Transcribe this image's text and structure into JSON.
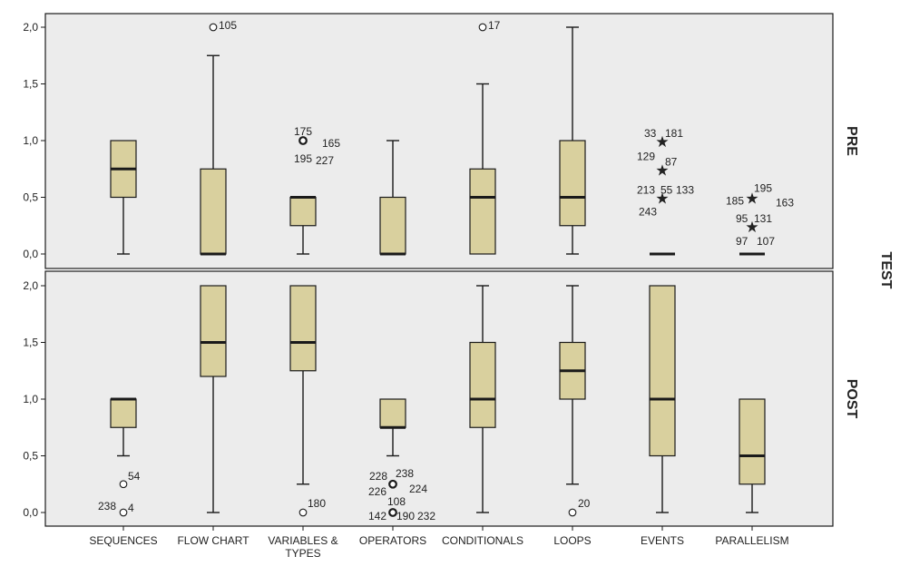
{
  "chart_data": {
    "type": "boxplot",
    "facet_label": "TEST",
    "categories": [
      "SEQUENCES",
      "FLOW CHART",
      "VARIABLES & TYPES",
      "OPERATORS",
      "CONDITIONALS",
      "LOOPS",
      "EVENTS",
      "PARALLELISM"
    ],
    "y_ticks": [
      "0,0",
      "0,5",
      "1,0",
      "1,5",
      "2,0"
    ],
    "ylim": [
      0,
      2
    ],
    "colors": {
      "box_fill": "#d9d09e",
      "panel_bg": "#ececec",
      "stroke": "#1a1a1a"
    },
    "panels": [
      {
        "name": "PRE",
        "boxes": [
          {
            "category": "SEQUENCES",
            "min": 0,
            "q1": 0.5,
            "median": 0.75,
            "q3": 1.0,
            "max": 1.0
          },
          {
            "category": "FLOW CHART",
            "min": 0,
            "q1": 0,
            "median": 0,
            "q3": 0.75,
            "max": 1.75
          },
          {
            "category": "VARIABLES & TYPES",
            "min": 0,
            "q1": 0.25,
            "median": 0.5,
            "q3": 0.5,
            "max": 0.5
          },
          {
            "category": "OPERATORS",
            "min": 0,
            "q1": 0,
            "median": 0,
            "q3": 0.5,
            "max": 1.0
          },
          {
            "category": "CONDITIONALS",
            "min": 0,
            "q1": 0,
            "median": 0.5,
            "q3": 0.75,
            "max": 1.5
          },
          {
            "category": "LOOPS",
            "min": 0,
            "q1": 0.25,
            "median": 0.5,
            "q3": 1.0,
            "max": 2.0
          },
          {
            "category": "EVENTS",
            "min": 0,
            "q1": 0,
            "median": 0,
            "q3": 0,
            "max": 0
          },
          {
            "category": "PARALLELISM",
            "min": 0,
            "q1": 0,
            "median": 0,
            "q3": 0,
            "max": 0
          }
        ],
        "outliers": [
          {
            "category": "FLOW CHART",
            "value": 2.0,
            "marker": "circle",
            "labels": [
              "105"
            ]
          },
          {
            "category": "VARIABLES & TYPES",
            "value": 1.0,
            "marker": "circle-bold",
            "labels": [
              "175",
              "165",
              "195",
              "227"
            ]
          },
          {
            "category": "CONDITIONALS",
            "value": 2.0,
            "marker": "circle",
            "labels": [
              "17"
            ]
          },
          {
            "category": "EVENTS",
            "value": 1.0,
            "marker": "star",
            "labels": [
              "33",
              "181"
            ]
          },
          {
            "category": "EVENTS",
            "value": 0.75,
            "marker": "star",
            "labels": [
              "129",
              "87"
            ]
          },
          {
            "category": "EVENTS",
            "value": 0.5,
            "marker": "star",
            "labels": [
              "213",
              "55",
              "133",
              "243"
            ]
          },
          {
            "category": "PARALLELISM",
            "value": 0.5,
            "marker": "star",
            "labels": [
              "195",
              "185",
              "163"
            ]
          },
          {
            "category": "PARALLELISM",
            "value": 0.25,
            "marker": "star",
            "labels": [
              "95",
              "131",
              "97",
              "107"
            ]
          }
        ]
      },
      {
        "name": "POST",
        "boxes": [
          {
            "category": "SEQUENCES",
            "min": 0.5,
            "q1": 0.75,
            "median": 1.0,
            "q3": 1.0,
            "max": 1.0
          },
          {
            "category": "FLOW CHART",
            "min": 0,
            "q1": 1.2,
            "median": 1.5,
            "q3": 2.0,
            "max": 2.0
          },
          {
            "category": "VARIABLES & TYPES",
            "min": 0.25,
            "q1": 1.25,
            "median": 1.5,
            "q3": 2.0,
            "max": 2.0
          },
          {
            "category": "OPERATORS",
            "min": 0.5,
            "q1": 0.75,
            "median": 0.75,
            "q3": 1.0,
            "max": 1.0
          },
          {
            "category": "CONDITIONALS",
            "min": 0,
            "q1": 0.75,
            "median": 1.0,
            "q3": 1.5,
            "max": 2.0
          },
          {
            "category": "LOOPS",
            "min": 0.25,
            "q1": 1.0,
            "median": 1.25,
            "q3": 1.5,
            "max": 2.0
          },
          {
            "category": "EVENTS",
            "min": 0,
            "q1": 0.5,
            "median": 1.0,
            "q3": 2.0,
            "max": 2.0
          },
          {
            "category": "PARALLELISM",
            "min": 0,
            "q1": 0.25,
            "median": 0.5,
            "q3": 1.0,
            "max": 1.0
          }
        ],
        "outliers": [
          {
            "category": "SEQUENCES",
            "value": 0.25,
            "marker": "circle",
            "labels": [
              "54"
            ]
          },
          {
            "category": "SEQUENCES",
            "value": 0,
            "marker": "circle",
            "labels": [
              "238",
              "4"
            ]
          },
          {
            "category": "VARIABLES & TYPES",
            "value": 0,
            "marker": "circle",
            "labels": [
              "180"
            ]
          },
          {
            "category": "OPERATORS",
            "value": 0.25,
            "marker": "circle-bold",
            "labels": [
              "228",
              "238",
              "224",
              "226"
            ]
          },
          {
            "category": "OPERATORS",
            "value": 0,
            "marker": "circle-bold",
            "labels": [
              "108",
              "142",
              "190",
              "232"
            ]
          },
          {
            "category": "LOOPS",
            "value": 0,
            "marker": "circle",
            "labels": [
              "20"
            ]
          }
        ]
      }
    ]
  }
}
